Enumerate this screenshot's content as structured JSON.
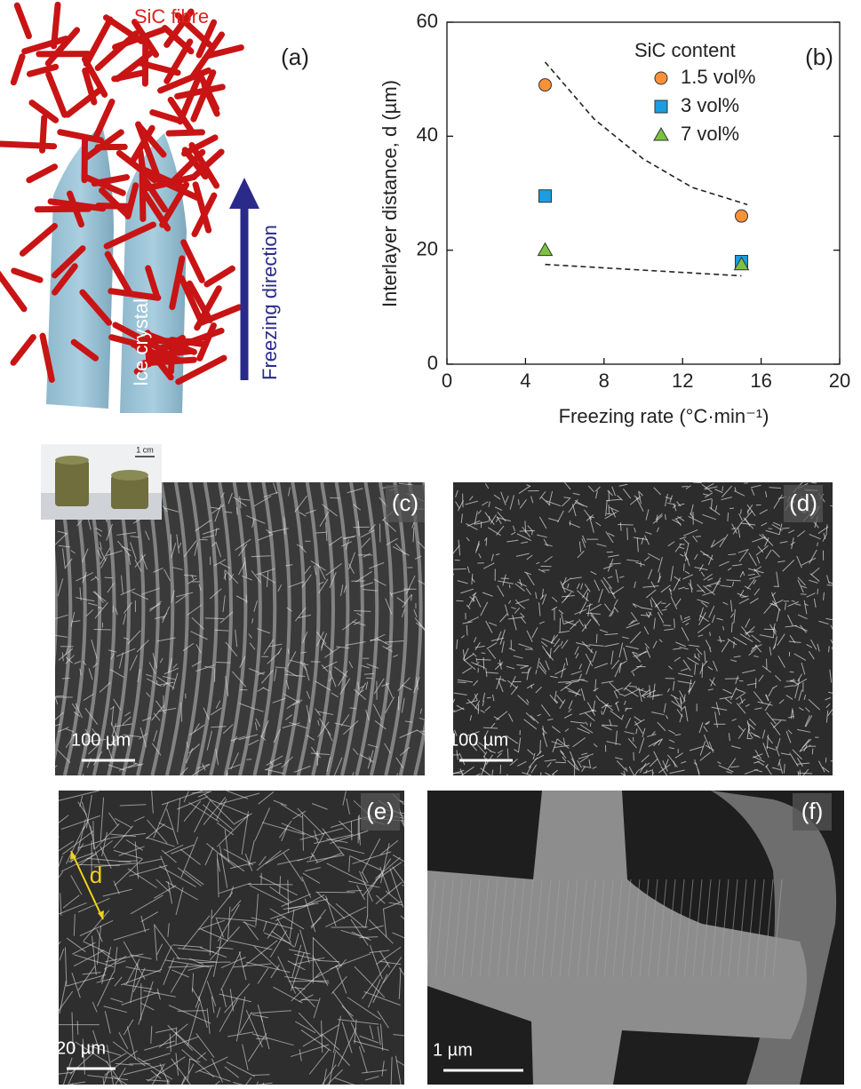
{
  "panel_a": {
    "label": "(a)",
    "fibre_label": "SiC fibre",
    "crystal_label": "Ice crystal",
    "direction_label": "Freezing direction"
  },
  "chart_data": {
    "type": "scatter",
    "label": "(b)",
    "x_label": "Freezing rate (°C·min⁻¹)",
    "y_label": "Interlayer distance, d (µm)",
    "legend_title": "SiC content",
    "legend_position": "upper right",
    "xlim": [
      0,
      20
    ],
    "ylim": [
      0,
      60
    ],
    "xticks": [
      0,
      4,
      8,
      12,
      16,
      20
    ],
    "yticks": [
      0,
      20,
      40,
      60
    ],
    "series": [
      {
        "name": "1.5 vol%",
        "color": "#f7923a",
        "marker": "circle",
        "x": [
          5,
          15
        ],
        "values": [
          49,
          26
        ]
      },
      {
        "name": "3 vol%",
        "color": "#1a9ee0",
        "marker": "square",
        "x": [
          5,
          15
        ],
        "values": [
          29.5,
          18
        ]
      },
      {
        "name": "7 vol%",
        "color": "#7cc242",
        "marker": "triangle",
        "x": [
          5,
          15
        ],
        "values": [
          20,
          17.5
        ]
      }
    ],
    "trend_lines": [
      {
        "x": [
          5,
          7.5,
          10,
          12.5,
          15.3
        ],
        "values": [
          53,
          43,
          36,
          31,
          28
        ]
      },
      {
        "x": [
          5,
          10,
          15
        ],
        "values": [
          17.5,
          16.5,
          15.5
        ]
      }
    ]
  },
  "inset": {
    "scale_bar": "1 cm"
  },
  "micrographs": [
    {
      "label": "(c)",
      "scale_bar": "100 µm"
    },
    {
      "label": "(d)",
      "scale_bar": "100 µm"
    },
    {
      "label": "(e)",
      "scale_bar": "20 µm",
      "annotation": "d"
    },
    {
      "label": "(f)",
      "scale_bar": "1 µm"
    }
  ]
}
